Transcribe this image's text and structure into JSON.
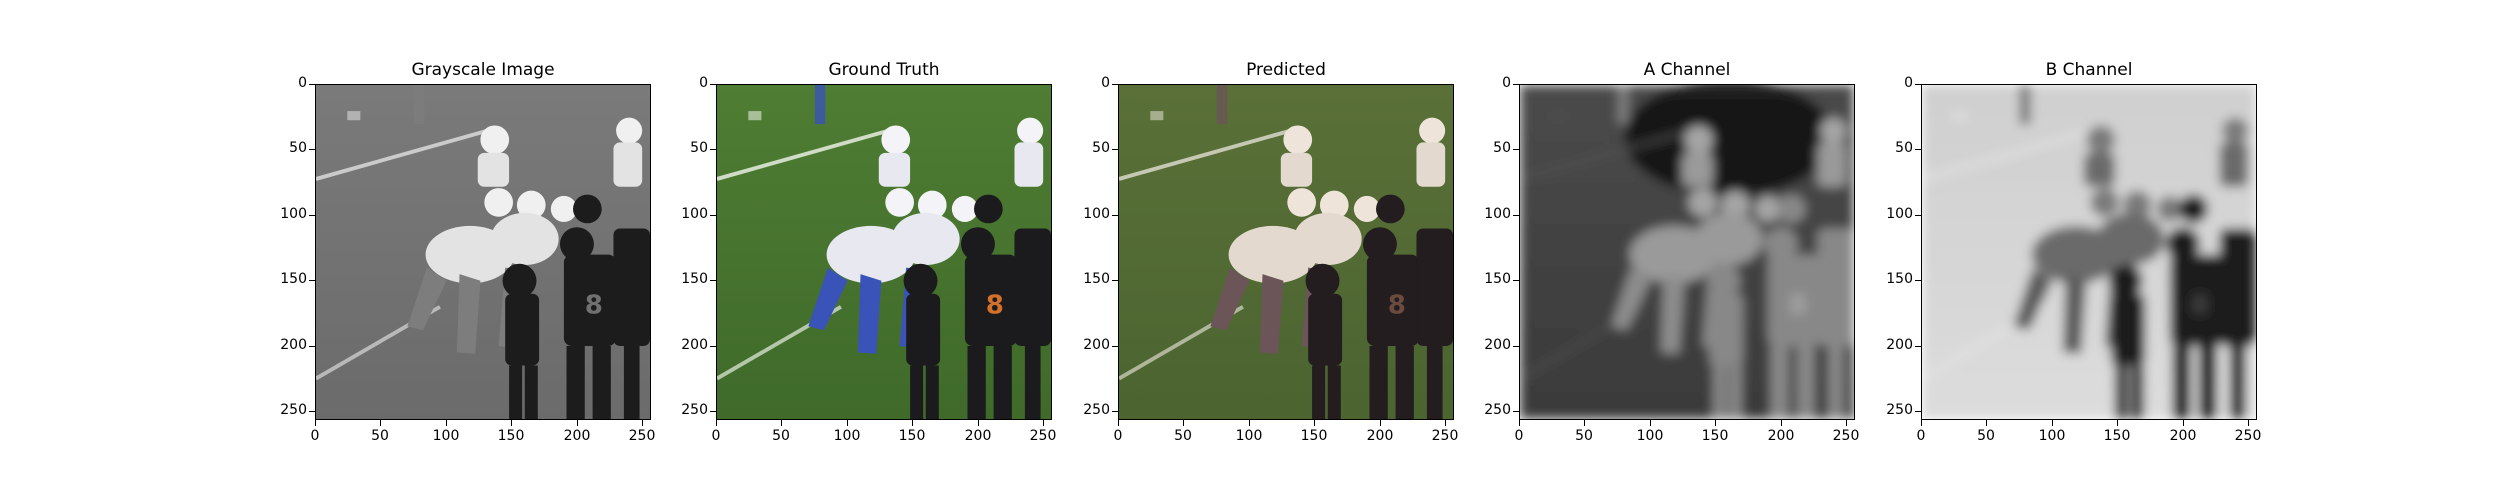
{
  "panels": [
    {
      "title": "Grayscale Image",
      "mode": "gray"
    },
    {
      "title": "Ground Truth",
      "mode": "color"
    },
    {
      "title": "Predicted",
      "mode": "muted"
    },
    {
      "title": "A Channel",
      "mode": "achannel"
    },
    {
      "title": "B Channel",
      "mode": "bchannel"
    }
  ],
  "axes": {
    "x_ticks": [
      "0",
      "50",
      "100",
      "150",
      "200",
      "250"
    ],
    "y_ticks": [
      "0",
      "50",
      "100",
      "150",
      "200",
      "250"
    ],
    "x_values": [
      0,
      50,
      100,
      150,
      200,
      250
    ],
    "y_values": [
      0,
      50,
      100,
      150,
      200,
      250
    ],
    "extent": 256
  },
  "scene": {
    "description_type": "american-football-players-on-grass-field",
    "colors": {
      "grass": "#3f6a2a",
      "white_jersey": "#e8e8f0",
      "blue_pants": "#3a53b8",
      "black_jersey": "#1b1b1d",
      "orange_number": "#d3702a"
    }
  }
}
